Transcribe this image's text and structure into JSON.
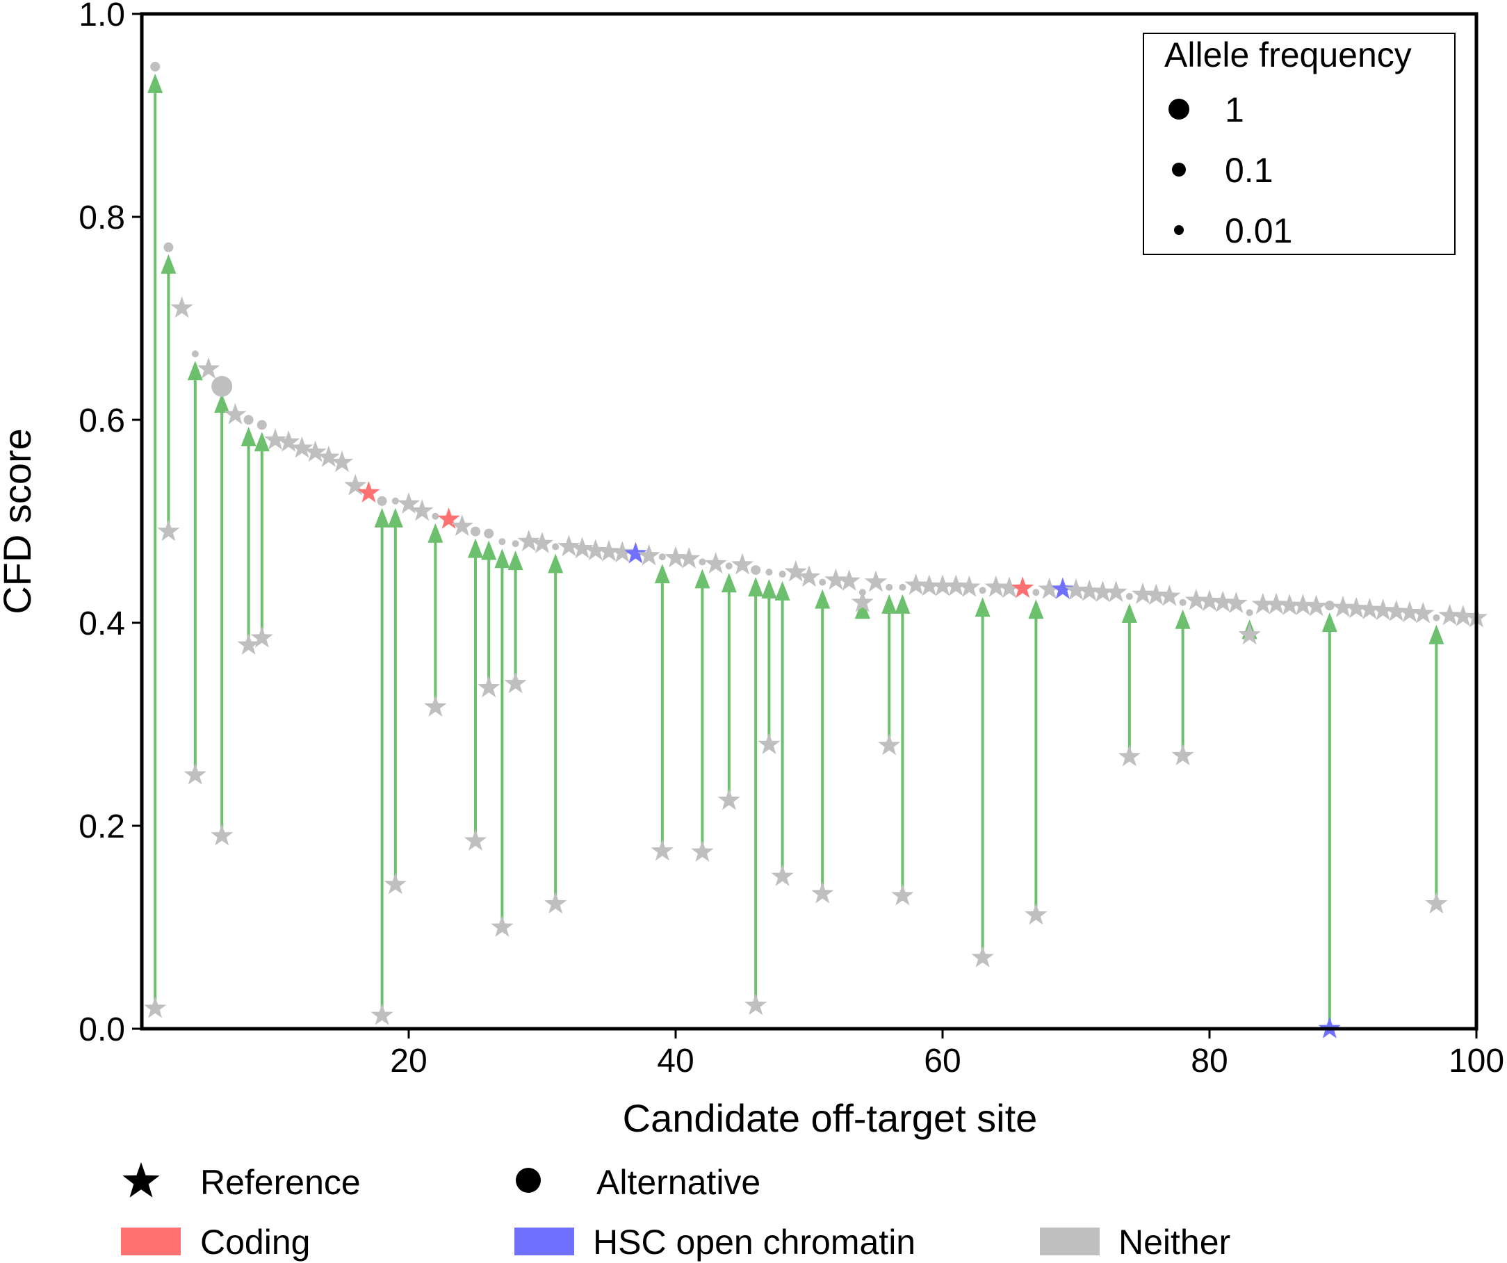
{
  "chart_data": {
    "type": "scatter",
    "title": "",
    "xlabel": "Candidate off-target site",
    "ylabel": "CFD score",
    "xlim": [
      0,
      100
    ],
    "ylim": [
      0.0,
      1.0
    ],
    "xticks": [
      20,
      40,
      60,
      80,
      100
    ],
    "yticks": [
      0.0,
      0.2,
      0.4,
      0.6,
      0.8,
      1.0
    ],
    "ytick_labels": [
      "0.0",
      "0.2",
      "0.4",
      "0.6",
      "0.8",
      "1.0"
    ],
    "grid": false,
    "colors": {
      "coding": "#ff7070",
      "hsc": "#7070ff",
      "neither": "#bfbfbf",
      "arrow": "#6cbf6c",
      "alternative_point": "#bfbfbf"
    },
    "size_legend": {
      "title": "Allele frequency",
      "position": "top-right",
      "entries": [
        {
          "label": "1",
          "value": 1
        },
        {
          "label": "0.1",
          "value": 0.1
        },
        {
          "label": "0.01",
          "value": 0.01
        }
      ]
    },
    "bottom_legend": {
      "position": "bottom",
      "markers": [
        {
          "label": "Reference",
          "shape": "star"
        },
        {
          "label": "Alternative",
          "shape": "circle"
        }
      ],
      "categories": [
        {
          "label": "Coding",
          "color": "#ff7070"
        },
        {
          "label": "HSC open chromatin",
          "color": "#7070ff"
        },
        {
          "label": "Neither",
          "color": "#bfbfbf"
        }
      ]
    },
    "reference_stars": [
      {
        "x": 1,
        "y": 0.02,
        "cat": "neither"
      },
      {
        "x": 2,
        "y": 0.49,
        "cat": "neither"
      },
      {
        "x": 3,
        "y": 0.71,
        "cat": "neither"
      },
      {
        "x": 4,
        "y": 0.25,
        "cat": "neither"
      },
      {
        "x": 5,
        "y": 0.65,
        "cat": "neither"
      },
      {
        "x": 6,
        "y": 0.19,
        "cat": "neither"
      },
      {
        "x": 7,
        "y": 0.605,
        "cat": "neither"
      },
      {
        "x": 8,
        "y": 0.378,
        "cat": "neither"
      },
      {
        "x": 9,
        "y": 0.385,
        "cat": "neither"
      },
      {
        "x": 10,
        "y": 0.58,
        "cat": "neither"
      },
      {
        "x": 11,
        "y": 0.578,
        "cat": "neither"
      },
      {
        "x": 12,
        "y": 0.572,
        "cat": "neither"
      },
      {
        "x": 13,
        "y": 0.568,
        "cat": "neither"
      },
      {
        "x": 14,
        "y": 0.563,
        "cat": "neither"
      },
      {
        "x": 15,
        "y": 0.558,
        "cat": "neither"
      },
      {
        "x": 16,
        "y": 0.535,
        "cat": "neither"
      },
      {
        "x": 17,
        "y": 0.528,
        "cat": "coding"
      },
      {
        "x": 18,
        "y": 0.013,
        "cat": "neither"
      },
      {
        "x": 19,
        "y": 0.142,
        "cat": "neither"
      },
      {
        "x": 20,
        "y": 0.517,
        "cat": "neither"
      },
      {
        "x": 21,
        "y": 0.51,
        "cat": "neither"
      },
      {
        "x": 22,
        "y": 0.317,
        "cat": "neither"
      },
      {
        "x": 23,
        "y": 0.502,
        "cat": "coding"
      },
      {
        "x": 24,
        "y": 0.495,
        "cat": "neither"
      },
      {
        "x": 25,
        "y": 0.185,
        "cat": "neither"
      },
      {
        "x": 26,
        "y": 0.336,
        "cat": "neither"
      },
      {
        "x": 27,
        "y": 0.1,
        "cat": "neither"
      },
      {
        "x": 28,
        "y": 0.34,
        "cat": "neither"
      },
      {
        "x": 29,
        "y": 0.48,
        "cat": "neither"
      },
      {
        "x": 30,
        "y": 0.478,
        "cat": "neither"
      },
      {
        "x": 31,
        "y": 0.123,
        "cat": "neither"
      },
      {
        "x": 32,
        "y": 0.475,
        "cat": "neither"
      },
      {
        "x": 33,
        "y": 0.473,
        "cat": "neither"
      },
      {
        "x": 34,
        "y": 0.471,
        "cat": "neither"
      },
      {
        "x": 35,
        "y": 0.47,
        "cat": "neither"
      },
      {
        "x": 36,
        "y": 0.469,
        "cat": "neither"
      },
      {
        "x": 37,
        "y": 0.468,
        "cat": "hsc"
      },
      {
        "x": 38,
        "y": 0.466,
        "cat": "neither"
      },
      {
        "x": 39,
        "y": 0.175,
        "cat": "neither"
      },
      {
        "x": 40,
        "y": 0.464,
        "cat": "neither"
      },
      {
        "x": 41,
        "y": 0.463,
        "cat": "neither"
      },
      {
        "x": 42,
        "y": 0.174,
        "cat": "neither"
      },
      {
        "x": 43,
        "y": 0.458,
        "cat": "neither"
      },
      {
        "x": 44,
        "y": 0.225,
        "cat": "neither"
      },
      {
        "x": 45,
        "y": 0.457,
        "cat": "neither"
      },
      {
        "x": 46,
        "y": 0.023,
        "cat": "neither"
      },
      {
        "x": 47,
        "y": 0.28,
        "cat": "neither"
      },
      {
        "x": 48,
        "y": 0.15,
        "cat": "neither"
      },
      {
        "x": 49,
        "y": 0.45,
        "cat": "neither"
      },
      {
        "x": 50,
        "y": 0.445,
        "cat": "neither"
      },
      {
        "x": 51,
        "y": 0.133,
        "cat": "neither"
      },
      {
        "x": 52,
        "y": 0.442,
        "cat": "neither"
      },
      {
        "x": 53,
        "y": 0.441,
        "cat": "neither"
      },
      {
        "x": 54,
        "y": 0.42,
        "cat": "neither"
      },
      {
        "x": 55,
        "y": 0.44,
        "cat": "neither"
      },
      {
        "x": 56,
        "y": 0.279,
        "cat": "neither"
      },
      {
        "x": 57,
        "y": 0.131,
        "cat": "neither"
      },
      {
        "x": 58,
        "y": 0.437,
        "cat": "neither"
      },
      {
        "x": 59,
        "y": 0.436,
        "cat": "neither"
      },
      {
        "x": 60,
        "y": 0.436,
        "cat": "neither"
      },
      {
        "x": 61,
        "y": 0.436,
        "cat": "neither"
      },
      {
        "x": 62,
        "y": 0.435,
        "cat": "neither"
      },
      {
        "x": 63,
        "y": 0.07,
        "cat": "neither"
      },
      {
        "x": 64,
        "y": 0.435,
        "cat": "neither"
      },
      {
        "x": 65,
        "y": 0.434,
        "cat": "neither"
      },
      {
        "x": 66,
        "y": 0.434,
        "cat": "coding"
      },
      {
        "x": 67,
        "y": 0.112,
        "cat": "neither"
      },
      {
        "x": 68,
        "y": 0.433,
        "cat": "neither"
      },
      {
        "x": 69,
        "y": 0.433,
        "cat": "hsc"
      },
      {
        "x": 70,
        "y": 0.432,
        "cat": "neither"
      },
      {
        "x": 71,
        "y": 0.431,
        "cat": "neither"
      },
      {
        "x": 72,
        "y": 0.43,
        "cat": "neither"
      },
      {
        "x": 73,
        "y": 0.43,
        "cat": "neither"
      },
      {
        "x": 74,
        "y": 0.268,
        "cat": "neither"
      },
      {
        "x": 75,
        "y": 0.428,
        "cat": "neither"
      },
      {
        "x": 76,
        "y": 0.427,
        "cat": "neither"
      },
      {
        "x": 77,
        "y": 0.426,
        "cat": "neither"
      },
      {
        "x": 78,
        "y": 0.269,
        "cat": "neither"
      },
      {
        "x": 79,
        "y": 0.422,
        "cat": "neither"
      },
      {
        "x": 80,
        "y": 0.421,
        "cat": "neither"
      },
      {
        "x": 81,
        "y": 0.42,
        "cat": "neither"
      },
      {
        "x": 82,
        "y": 0.419,
        "cat": "neither"
      },
      {
        "x": 83,
        "y": 0.388,
        "cat": "neither"
      },
      {
        "x": 84,
        "y": 0.418,
        "cat": "neither"
      },
      {
        "x": 85,
        "y": 0.418,
        "cat": "neither"
      },
      {
        "x": 86,
        "y": 0.417,
        "cat": "neither"
      },
      {
        "x": 87,
        "y": 0.417,
        "cat": "neither"
      },
      {
        "x": 88,
        "y": 0.416,
        "cat": "neither"
      },
      {
        "x": 89,
        "y": 0.0,
        "cat": "hsc"
      },
      {
        "x": 90,
        "y": 0.415,
        "cat": "neither"
      },
      {
        "x": 91,
        "y": 0.414,
        "cat": "neither"
      },
      {
        "x": 92,
        "y": 0.413,
        "cat": "neither"
      },
      {
        "x": 93,
        "y": 0.412,
        "cat": "neither"
      },
      {
        "x": 94,
        "y": 0.411,
        "cat": "neither"
      },
      {
        "x": 95,
        "y": 0.41,
        "cat": "neither"
      },
      {
        "x": 96,
        "y": 0.409,
        "cat": "neither"
      },
      {
        "x": 97,
        "y": 0.123,
        "cat": "neither"
      },
      {
        "x": 98,
        "y": 0.407,
        "cat": "neither"
      },
      {
        "x": 99,
        "y": 0.406,
        "cat": "neither"
      },
      {
        "x": 100,
        "y": 0.405,
        "cat": "neither"
      }
    ],
    "alternative_points": [
      {
        "x": 1,
        "y": 0.948,
        "af": 0.01
      },
      {
        "x": 2,
        "y": 0.77,
        "af": 0.01
      },
      {
        "x": 4,
        "y": 0.665,
        "af": 0.005
      },
      {
        "x": 6,
        "y": 0.633,
        "af": 1
      },
      {
        "x": 8,
        "y": 0.6,
        "af": 0.01
      },
      {
        "x": 9,
        "y": 0.595,
        "af": 0.01
      },
      {
        "x": 18,
        "y": 0.52,
        "af": 0.01
      },
      {
        "x": 19,
        "y": 0.52,
        "af": 0.005
      },
      {
        "x": 22,
        "y": 0.505,
        "af": 0.005
      },
      {
        "x": 25,
        "y": 0.49,
        "af": 0.01
      },
      {
        "x": 26,
        "y": 0.488,
        "af": 0.01
      },
      {
        "x": 27,
        "y": 0.48,
        "af": 0.005
      },
      {
        "x": 28,
        "y": 0.478,
        "af": 0.005
      },
      {
        "x": 31,
        "y": 0.475,
        "af": 0.005
      },
      {
        "x": 39,
        "y": 0.465,
        "af": 0.005
      },
      {
        "x": 42,
        "y": 0.46,
        "af": 0.005
      },
      {
        "x": 44,
        "y": 0.456,
        "af": 0.005
      },
      {
        "x": 46,
        "y": 0.452,
        "af": 0.01
      },
      {
        "x": 47,
        "y": 0.45,
        "af": 0.005
      },
      {
        "x": 48,
        "y": 0.448,
        "af": 0.005
      },
      {
        "x": 51,
        "y": 0.44,
        "af": 0.005
      },
      {
        "x": 54,
        "y": 0.43,
        "af": 0.005
      },
      {
        "x": 56,
        "y": 0.435,
        "af": 0.005
      },
      {
        "x": 57,
        "y": 0.435,
        "af": 0.005
      },
      {
        "x": 63,
        "y": 0.432,
        "af": 0.005
      },
      {
        "x": 67,
        "y": 0.43,
        "af": 0.005
      },
      {
        "x": 74,
        "y": 0.426,
        "af": 0.005
      },
      {
        "x": 78,
        "y": 0.42,
        "af": 0.005
      },
      {
        "x": 83,
        "y": 0.41,
        "af": 0.005
      },
      {
        "x": 89,
        "y": 0.417,
        "af": 0.01
      },
      {
        "x": 97,
        "y": 0.405,
        "af": 0.005
      }
    ],
    "arrows": [
      {
        "x": 1,
        "from": 0.02,
        "to": 0.948
      },
      {
        "x": 2,
        "from": 0.49,
        "to": 0.77
      },
      {
        "x": 4,
        "from": 0.25,
        "to": 0.665
      },
      {
        "x": 6,
        "from": 0.19,
        "to": 0.633
      },
      {
        "x": 8,
        "from": 0.378,
        "to": 0.6
      },
      {
        "x": 9,
        "from": 0.385,
        "to": 0.595
      },
      {
        "x": 18,
        "from": 0.013,
        "to": 0.52
      },
      {
        "x": 19,
        "from": 0.142,
        "to": 0.52
      },
      {
        "x": 22,
        "from": 0.317,
        "to": 0.505
      },
      {
        "x": 25,
        "from": 0.185,
        "to": 0.49
      },
      {
        "x": 26,
        "from": 0.336,
        "to": 0.488
      },
      {
        "x": 27,
        "from": 0.1,
        "to": 0.48
      },
      {
        "x": 28,
        "from": 0.34,
        "to": 0.478
      },
      {
        "x": 31,
        "from": 0.123,
        "to": 0.475
      },
      {
        "x": 39,
        "from": 0.175,
        "to": 0.465
      },
      {
        "x": 42,
        "from": 0.174,
        "to": 0.46
      },
      {
        "x": 44,
        "from": 0.225,
        "to": 0.456
      },
      {
        "x": 46,
        "from": 0.023,
        "to": 0.452
      },
      {
        "x": 47,
        "from": 0.28,
        "to": 0.45
      },
      {
        "x": 48,
        "from": 0.15,
        "to": 0.448
      },
      {
        "x": 51,
        "from": 0.133,
        "to": 0.44
      },
      {
        "x": 54,
        "from": 0.42,
        "to": 0.43
      },
      {
        "x": 56,
        "from": 0.279,
        "to": 0.435
      },
      {
        "x": 57,
        "from": 0.131,
        "to": 0.435
      },
      {
        "x": 63,
        "from": 0.07,
        "to": 0.432
      },
      {
        "x": 67,
        "from": 0.112,
        "to": 0.43
      },
      {
        "x": 74,
        "from": 0.268,
        "to": 0.426
      },
      {
        "x": 78,
        "from": 0.269,
        "to": 0.42
      },
      {
        "x": 83,
        "from": 0.388,
        "to": 0.41
      },
      {
        "x": 89,
        "from": 0.0,
        "to": 0.417
      },
      {
        "x": 97,
        "from": 0.123,
        "to": 0.405
      }
    ]
  }
}
